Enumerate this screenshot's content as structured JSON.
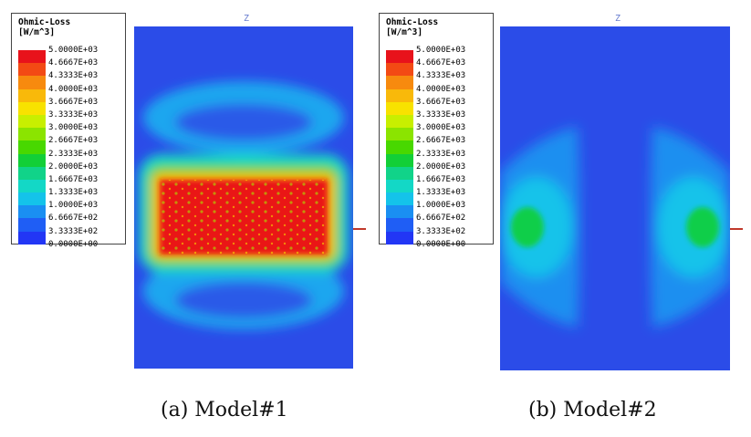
{
  "legend": {
    "title_line1": "Ohmic-Loss",
    "title_line2": "[W/m^3]",
    "labels": [
      "5.0000E+03",
      "4.6667E+03",
      "4.3333E+03",
      "4.0000E+03",
      "3.6667E+03",
      "3.3333E+03",
      "3.0000E+03",
      "2.6667E+03",
      "2.3333E+03",
      "2.0000E+03",
      "1.6667E+03",
      "1.3333E+03",
      "1.0000E+03",
      "6.6667E+02",
      "3.3333E+02",
      "0.0000E+00"
    ],
    "colors": [
      "#e8121b",
      "#f34a14",
      "#f78a0e",
      "#f9b90a",
      "#f8e200",
      "#c8ef00",
      "#8be400",
      "#48d800",
      "#12cf37",
      "#11d389",
      "#13d8c6",
      "#14c3ea",
      "#1a8ff2",
      "#1f5ef5",
      "#2236f5"
    ]
  },
  "axis_label": "Z",
  "panels": [
    {
      "caption": "(a)  Model#1"
    },
    {
      "caption": "(b)  Model#2"
    }
  ],
  "colors": {
    "field_base": "#2b4ce8",
    "axis_tick": "#c0392b"
  }
}
